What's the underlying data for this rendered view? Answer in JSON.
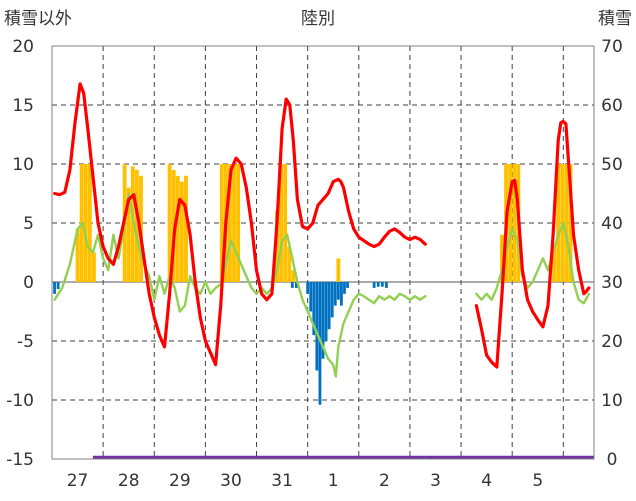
{
  "chart_data": {
    "type": "line",
    "title": "陸別",
    "left_axis_label": "積雪以外",
    "right_axis_label": "積雪",
    "ylim": [
      -15,
      20
    ],
    "yticks": [
      -15,
      -10,
      -5,
      0,
      5,
      10,
      15,
      20
    ],
    "ylim_right": [
      0,
      70
    ],
    "yticks_right": [
      0,
      10,
      20,
      30,
      40,
      50,
      60,
      70
    ],
    "x_tick_labels": [
      "27",
      "28",
      "29",
      "30",
      "31",
      "1",
      "2",
      "3",
      "4",
      "5"
    ],
    "xlim": [
      0,
      10.6
    ],
    "grid": "vertical dashed at day boundaries, solid at 0 line",
    "series": [
      {
        "role": "temperature",
        "color": "#ff0000",
        "segments": [
          [
            [
              0.05,
              7.5
            ],
            [
              0.15,
              7.4
            ],
            [
              0.25,
              7.6
            ],
            [
              0.35,
              9.5
            ],
            [
              0.45,
              13.5
            ],
            [
              0.55,
              16.8
            ],
            [
              0.62,
              16
            ],
            [
              0.7,
              13
            ],
            [
              0.8,
              9
            ],
            [
              0.9,
              5
            ],
            [
              1.0,
              3
            ],
            [
              1.1,
              2
            ],
            [
              1.2,
              1.5
            ],
            [
              1.3,
              3
            ],
            [
              1.4,
              5
            ],
            [
              1.5,
              7
            ],
            [
              1.6,
              7.4
            ],
            [
              1.7,
              5
            ],
            [
              1.8,
              2
            ],
            [
              1.9,
              -1
            ],
            [
              2.0,
              -3
            ],
            [
              2.1,
              -4.5
            ],
            [
              2.2,
              -5.5
            ],
            [
              2.3,
              -1
            ],
            [
              2.4,
              4.5
            ],
            [
              2.5,
              7
            ],
            [
              2.6,
              6.5
            ],
            [
              2.7,
              4
            ],
            [
              2.8,
              0
            ],
            [
              2.9,
              -3
            ],
            [
              3.0,
              -5
            ],
            [
              3.1,
              -6
            ],
            [
              3.2,
              -7
            ],
            [
              3.3,
              -2
            ],
            [
              3.4,
              5
            ],
            [
              3.5,
              9.5
            ],
            [
              3.6,
              10.5
            ],
            [
              3.7,
              10
            ],
            [
              3.8,
              8
            ],
            [
              3.9,
              5
            ],
            [
              4.0,
              1
            ],
            [
              4.1,
              -1
            ],
            [
              4.2,
              -1.5
            ],
            [
              4.3,
              -1
            ],
            [
              4.4,
              5
            ],
            [
              4.5,
              13
            ],
            [
              4.58,
              15.5
            ],
            [
              4.65,
              15
            ],
            [
              4.72,
              12
            ],
            [
              4.8,
              7
            ],
            [
              4.9,
              4.7
            ],
            [
              5.0,
              4.5
            ],
            [
              5.1,
              5
            ],
            [
              5.2,
              6.5
            ],
            [
              5.3,
              7
            ],
            [
              5.4,
              7.5
            ],
            [
              5.5,
              8.5
            ],
            [
              5.6,
              8.7
            ],
            [
              5.65,
              8.5
            ],
            [
              5.7,
              8.0
            ],
            [
              5.8,
              6
            ],
            [
              5.9,
              4.5
            ],
            [
              6.0,
              3.8
            ],
            [
              6.1,
              3.5
            ],
            [
              6.2,
              3.2
            ],
            [
              6.3,
              3.0
            ],
            [
              6.4,
              3.2
            ],
            [
              6.5,
              3.8
            ],
            [
              6.6,
              4.3
            ],
            [
              6.7,
              4.5
            ],
            [
              6.8,
              4.2
            ],
            [
              6.9,
              3.8
            ],
            [
              7.0,
              3.6
            ],
            [
              7.1,
              3.8
            ],
            [
              7.2,
              3.6
            ],
            [
              7.3,
              3.2
            ]
          ],
          [
            [
              8.3,
              -2
            ],
            [
              8.4,
              -4
            ],
            [
              8.5,
              -6.2
            ],
            [
              8.6,
              -6.8
            ],
            [
              8.7,
              -7.2
            ],
            [
              8.8,
              -1
            ],
            [
              8.9,
              6
            ],
            [
              9.0,
              8.5
            ],
            [
              9.05,
              8.6
            ],
            [
              9.1,
              7
            ],
            [
              9.2,
              1
            ],
            [
              9.3,
              -1.5
            ],
            [
              9.4,
              -2.5
            ],
            [
              9.5,
              -3.2
            ],
            [
              9.6,
              -3.8
            ],
            [
              9.7,
              -2
            ],
            [
              9.8,
              4
            ],
            [
              9.9,
              12
            ],
            [
              9.95,
              13.5
            ],
            [
              10.0,
              13.6
            ],
            [
              10.05,
              13.4
            ],
            [
              10.12,
              9
            ],
            [
              10.2,
              4
            ],
            [
              10.3,
              1
            ],
            [
              10.4,
              -1
            ],
            [
              10.45,
              -0.8
            ],
            [
              10.5,
              -0.5
            ]
          ]
        ]
      },
      {
        "role": "secondary",
        "color": "#92d050",
        "segments": [
          [
            [
              0.05,
              -1.5
            ],
            [
              0.2,
              -0.5
            ],
            [
              0.35,
              1.5
            ],
            [
              0.5,
              4.5
            ],
            [
              0.6,
              5.0
            ],
            [
              0.7,
              3.0
            ],
            [
              0.8,
              2.5
            ],
            [
              0.9,
              4.0
            ],
            [
              1.0,
              2.0
            ],
            [
              1.1,
              1.0
            ],
            [
              1.2,
              4.0
            ],
            [
              1.3,
              2.0
            ],
            [
              1.4,
              4.5
            ],
            [
              1.5,
              7.5
            ],
            [
              1.6,
              5.0
            ],
            [
              1.7,
              3.0
            ],
            [
              1.8,
              1.5
            ],
            [
              1.9,
              0.5
            ],
            [
              2.0,
              -1.5
            ],
            [
              2.1,
              0.5
            ],
            [
              2.2,
              -1.0
            ],
            [
              2.3,
              0.5
            ],
            [
              2.4,
              -0.5
            ],
            [
              2.5,
              -2.5
            ],
            [
              2.6,
              -2.0
            ],
            [
              2.7,
              0.5
            ],
            [
              2.8,
              -0.5
            ],
            [
              2.9,
              -1.0
            ],
            [
              3.0,
              0.0
            ],
            [
              3.1,
              -1.0
            ],
            [
              3.2,
              -0.5
            ],
            [
              3.3,
              -0.2
            ],
            [
              3.4,
              1.5
            ],
            [
              3.5,
              3.5
            ],
            [
              3.6,
              2.5
            ],
            [
              3.7,
              1.5
            ],
            [
              3.8,
              0.5
            ],
            [
              3.9,
              -0.5
            ],
            [
              4.0,
              -1.0
            ],
            [
              4.1,
              -0.5
            ],
            [
              4.2,
              -1.0
            ],
            [
              4.3,
              -0.5
            ],
            [
              4.4,
              1.0
            ],
            [
              4.5,
              3.5
            ],
            [
              4.6,
              4.0
            ],
            [
              4.7,
              2.0
            ],
            [
              4.8,
              0.0
            ],
            [
              4.9,
              -1.5
            ],
            [
              5.0,
              -2.5
            ],
            [
              5.1,
              -3.5
            ],
            [
              5.2,
              -4.5
            ],
            [
              5.3,
              -5.5
            ],
            [
              5.4,
              -6.5
            ],
            [
              5.5,
              -7.0
            ],
            [
              5.55,
              -8.0
            ],
            [
              5.6,
              -5.5
            ],
            [
              5.7,
              -3.5
            ],
            [
              5.8,
              -2.5
            ],
            [
              5.9,
              -1.5
            ],
            [
              6.0,
              -1.0
            ],
            [
              6.1,
              -1.2
            ],
            [
              6.2,
              -1.5
            ],
            [
              6.3,
              -1.8
            ],
            [
              6.4,
              -1.2
            ],
            [
              6.5,
              -1.5
            ],
            [
              6.6,
              -1.2
            ],
            [
              6.7,
              -1.5
            ],
            [
              6.8,
              -1.0
            ],
            [
              6.9,
              -1.2
            ],
            [
              7.0,
              -1.5
            ],
            [
              7.1,
              -1.2
            ],
            [
              7.2,
              -1.5
            ],
            [
              7.3,
              -1.2
            ]
          ],
          [
            [
              8.3,
              -1.0
            ],
            [
              8.4,
              -1.5
            ],
            [
              8.5,
              -1.0
            ],
            [
              8.6,
              -1.5
            ],
            [
              8.7,
              -0.5
            ],
            [
              8.8,
              1.0
            ],
            [
              8.9,
              3.0
            ],
            [
              9.0,
              4.5
            ],
            [
              9.1,
              3.5
            ],
            [
              9.2,
              0.5
            ],
            [
              9.3,
              -0.5
            ],
            [
              9.4,
              0.0
            ],
            [
              9.5,
              1.0
            ],
            [
              9.6,
              2.0
            ],
            [
              9.7,
              1.0
            ],
            [
              9.8,
              2.5
            ],
            [
              9.9,
              4.0
            ],
            [
              10.0,
              5.0
            ],
            [
              10.1,
              3.0
            ],
            [
              10.2,
              0.0
            ],
            [
              10.3,
              -1.5
            ],
            [
              10.4,
              -1.8
            ],
            [
              10.5,
              -1.0
            ]
          ]
        ]
      }
    ],
    "bars_positive": {
      "color": "#ffc000",
      "items": [
        [
          0.5,
          4.5
        ],
        [
          0.58,
          10
        ],
        [
          0.66,
          10
        ],
        [
          0.74,
          10
        ],
        [
          0.82,
          2.5
        ],
        [
          1.42,
          10
        ],
        [
          1.5,
          8
        ],
        [
          1.58,
          9.8
        ],
        [
          1.66,
          9.5
        ],
        [
          1.74,
          9
        ],
        [
          2.3,
          10
        ],
        [
          2.38,
          9.5
        ],
        [
          2.46,
          9
        ],
        [
          2.54,
          8.5
        ],
        [
          2.62,
          9
        ],
        [
          3.32,
          10
        ],
        [
          3.4,
          10
        ],
        [
          3.48,
          10
        ],
        [
          3.56,
          10
        ],
        [
          3.64,
          10
        ],
        [
          4.4,
          6
        ],
        [
          4.48,
          10
        ],
        [
          4.56,
          10
        ],
        [
          4.64,
          3
        ],
        [
          4.72,
          1
        ],
        [
          5.6,
          2
        ],
        [
          8.8,
          4
        ],
        [
          8.88,
          10
        ],
        [
          8.96,
          10
        ],
        [
          9.04,
          10
        ],
        [
          9.12,
          10
        ],
        [
          9.82,
          3
        ],
        [
          9.9,
          10
        ],
        [
          9.98,
          10
        ],
        [
          10.06,
          10
        ],
        [
          10.14,
          10
        ]
      ]
    },
    "bars_negative": {
      "color": "#0070c0",
      "items": [
        [
          0.05,
          -1
        ],
        [
          0.12,
          -0.6
        ],
        [
          4.7,
          -0.5
        ],
        [
          4.78,
          -0.5
        ],
        [
          5.0,
          -1
        ],
        [
          5.06,
          -2.5
        ],
        [
          5.12,
          -4.5
        ],
        [
          5.18,
          -7.5
        ],
        [
          5.24,
          -10.4
        ],
        [
          5.3,
          -6.5
        ],
        [
          5.36,
          -5
        ],
        [
          5.42,
          -4
        ],
        [
          5.48,
          -3
        ],
        [
          5.54,
          -2
        ],
        [
          5.6,
          -1.5
        ],
        [
          5.66,
          -2
        ],
        [
          5.72,
          -1
        ],
        [
          5.78,
          -0.5
        ],
        [
          6.3,
          -0.5
        ],
        [
          6.38,
          -0.4
        ],
        [
          6.46,
          -0.4
        ],
        [
          6.54,
          -0.5
        ]
      ]
    },
    "bottom_band": {
      "color": "#7030a0",
      "segments": [
        [
          0.8,
          7.3
        ],
        [
          7.3,
          10.6
        ]
      ]
    }
  }
}
